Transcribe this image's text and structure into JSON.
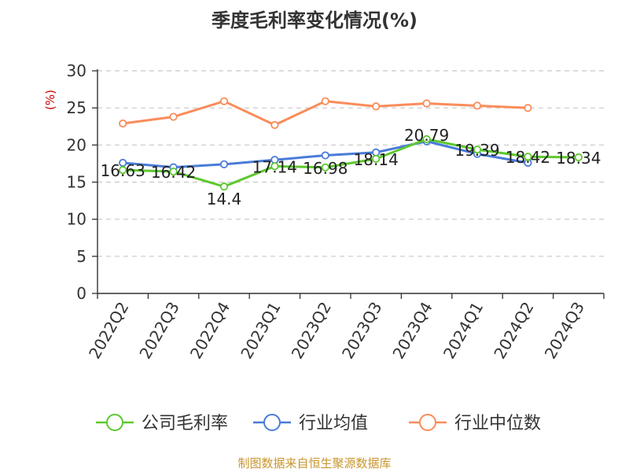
{
  "chart_data": {
    "type": "line",
    "title": "季度毛利率变化情况(%)",
    "ylabel": "(%)",
    "xlabel": "",
    "ylim": [
      0,
      30
    ],
    "yticks": [
      0,
      5,
      10,
      15,
      20,
      25,
      30
    ],
    "grid": true,
    "legend_position": "bottom",
    "categories": [
      "2022Q2",
      "2022Q3",
      "2022Q4",
      "2023Q1",
      "2023Q2",
      "2023Q3",
      "2023Q4",
      "2024Q1",
      "2024Q2",
      "2024Q3"
    ],
    "series": [
      {
        "name": "公司毛利率",
        "color": "#5cc82e",
        "values": [
          16.63,
          16.42,
          14.4,
          17.14,
          16.98,
          18.14,
          20.79,
          19.39,
          18.42,
          18.34
        ],
        "show_labels": true
      },
      {
        "name": "行业均值",
        "color": "#4a7bd8",
        "values": [
          17.6,
          17.0,
          17.4,
          18.0,
          18.6,
          19.0,
          20.5,
          18.8,
          17.6,
          null
        ],
        "show_labels": false
      },
      {
        "name": "行业中位数",
        "color": "#fa8c5a",
        "values": [
          22.9,
          23.8,
          25.9,
          22.7,
          25.9,
          25.2,
          25.6,
          25.3,
          25.0,
          null
        ],
        "show_labels": false
      }
    ]
  },
  "source": "制图数据来自恒生聚源数据库"
}
